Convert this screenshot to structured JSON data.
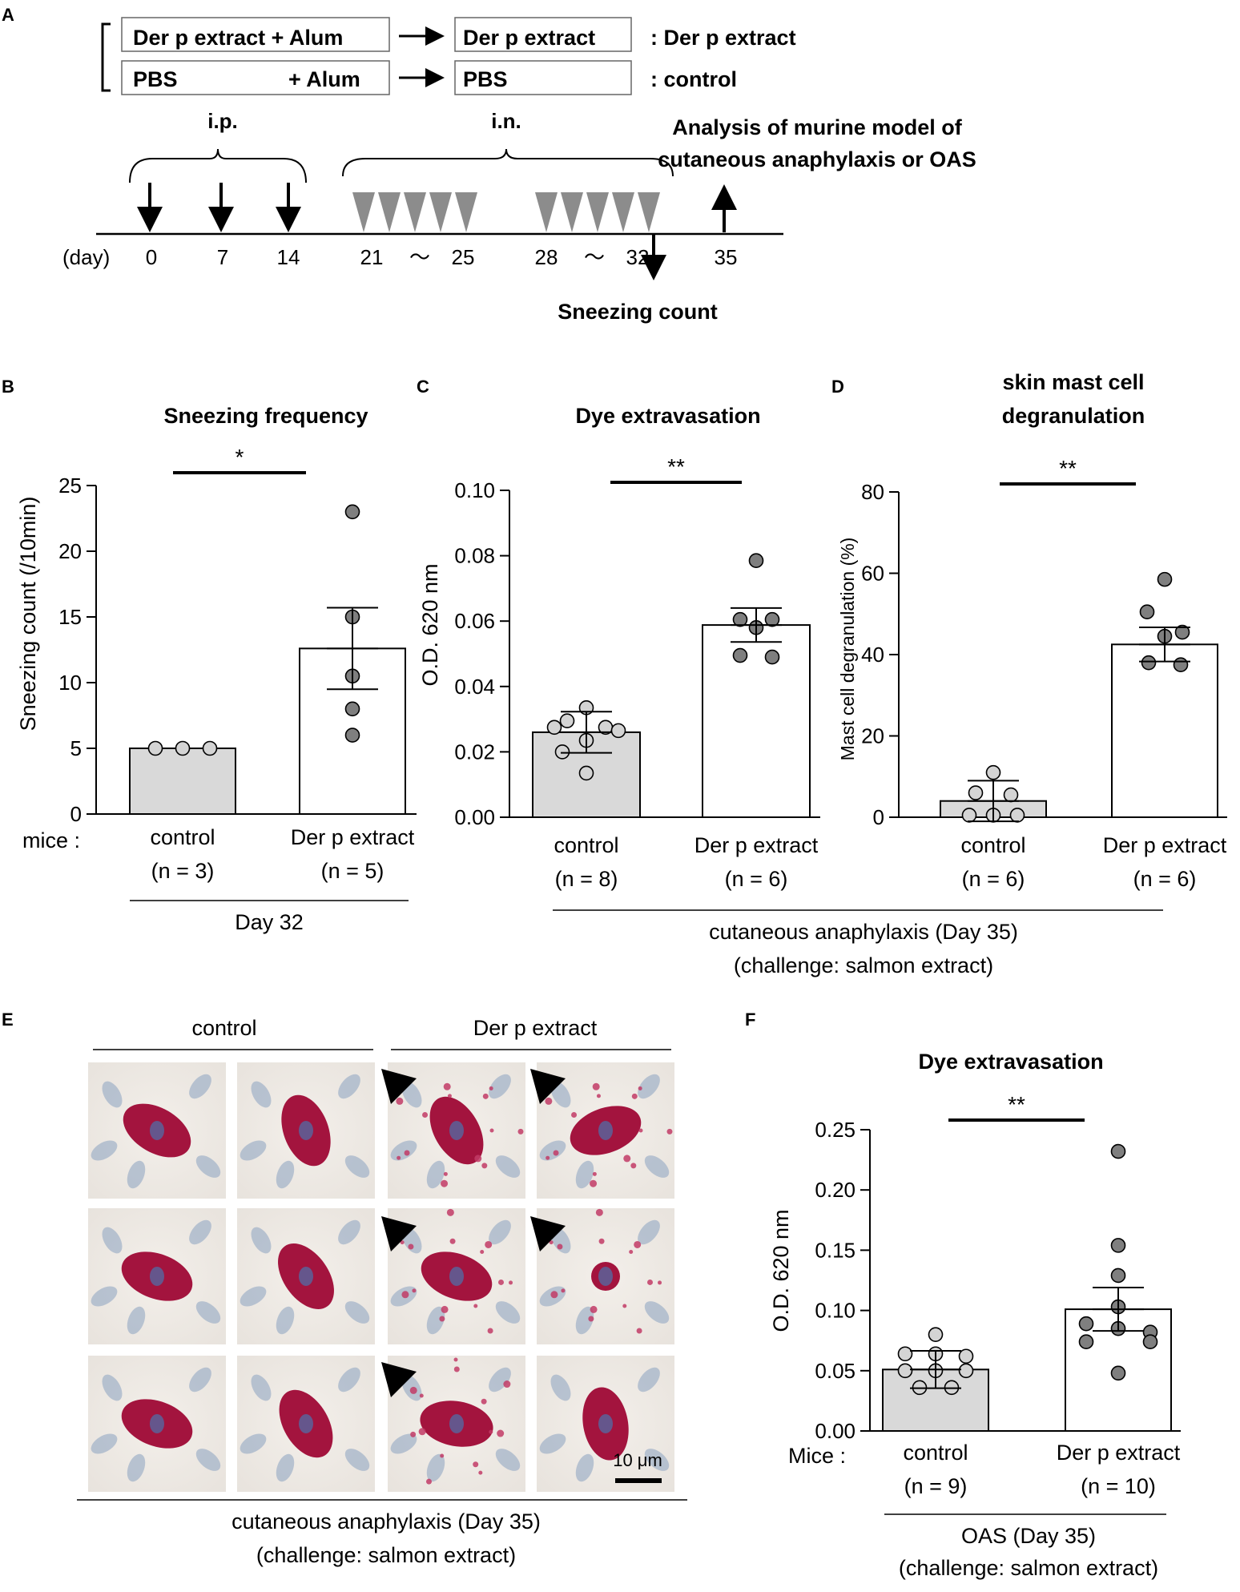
{
  "panels": {
    "A": {
      "letter": "A",
      "groups": [
        {
          "sensitization": "Der p extract + Alum",
          "challenge": "Der p extract",
          "label": ": Der p extract"
        },
        {
          "sensitization_left": "PBS",
          "sensitization_right": "+ Alum",
          "challenge": "PBS",
          "label": ": control"
        }
      ],
      "ip_label": "i.p.",
      "in_label": "i.n.",
      "analysis_label_1": "Analysis of murine model of",
      "analysis_label_2": "cutaneous anaphylaxis or OAS",
      "day_label": "(day)",
      "days": [
        "0",
        "7",
        "14",
        "21",
        "25",
        "28",
        "32",
        "35"
      ],
      "tilde": "〜",
      "sneezing_label": "Sneezing count"
    },
    "B": {
      "letter": "B",
      "mice_label": "mice :",
      "footer": "Day 32"
    },
    "C": {
      "letter": "C",
      "footer_1": "cutaneous anaphylaxis (Day 35)",
      "footer_2": "(challenge: salmon extract)"
    },
    "D": {
      "letter": "D"
    },
    "E": {
      "letter": "E",
      "col_control": "control",
      "col_derp": "Der p extract",
      "scale_bar": "10 μm",
      "footer_1": "cutaneous anaphylaxis (Day 35)",
      "footer_2": "(challenge: salmon extract)"
    },
    "F": {
      "letter": "F",
      "mice_label": "Mice :",
      "footer_1": "OAS (Day 35)",
      "footer_2": "(challenge: salmon extract)"
    }
  },
  "chart_data": [
    {
      "panel": "B",
      "type": "bar",
      "title": "Sneezing frequency",
      "ylabel": "Sneezing count (/10min)",
      "ylim": [
        0,
        25
      ],
      "yticks": [
        0,
        5,
        10,
        15,
        20,
        25
      ],
      "ytick_labels": [
        "0",
        "5",
        "10",
        "15",
        "20",
        "25"
      ],
      "categories": [
        "control",
        "Der p extract"
      ],
      "n_labels": [
        "(n = 3)",
        "(n = 5)"
      ],
      "means": [
        5,
        12.6
      ],
      "sem": [
        0,
        3.1
      ],
      "points": [
        [
          5,
          5,
          5
        ],
        [
          23,
          15,
          10.5,
          8,
          6
        ]
      ],
      "significance": "*"
    },
    {
      "panel": "C",
      "type": "bar",
      "title": "Dye extravasation",
      "ylabel": "O.D. 620 nm",
      "ylim": [
        0,
        0.1
      ],
      "yticks": [
        0,
        0.02,
        0.04,
        0.06,
        0.08,
        0.1
      ],
      "ytick_labels": [
        "0.00",
        "0.02",
        "0.04",
        "0.06",
        "0.08",
        "0.10"
      ],
      "categories": [
        "control",
        "Der p extract"
      ],
      "n_labels": [
        "(n = 8)",
        "(n = 6)"
      ],
      "means": [
        0.026,
        0.0588
      ],
      "sem": [
        0.0063,
        0.0052
      ],
      "points": [
        [
          0.0335,
          0.0295,
          0.0275,
          0.0275,
          0.0265,
          0.0235,
          0.02,
          0.0135
        ],
        [
          0.0785,
          0.0605,
          0.0605,
          0.058,
          0.0495,
          0.049
        ]
      ],
      "significance": "**"
    },
    {
      "panel": "D",
      "type": "bar",
      "title_line1": "skin mast cell",
      "title_line2": "degranulation",
      "ylabel": "Mast cell degranulation (%)",
      "ylim": [
        0,
        80
      ],
      "yticks": [
        0,
        20,
        40,
        60,
        80
      ],
      "ytick_labels": [
        "0",
        "20",
        "40",
        "60",
        "80"
      ],
      "categories": [
        "control",
        "Der p extract"
      ],
      "n_labels": [
        "(n = 6)",
        "(n = 6)"
      ],
      "means": [
        4,
        42.5
      ],
      "sem": [
        5,
        4.2
      ],
      "points": [
        [
          11,
          6,
          5.5,
          0.5,
          0.5,
          0.5
        ],
        [
          58.5,
          50.5,
          45.5,
          44.5,
          38,
          37.5
        ]
      ],
      "significance": "**"
    },
    {
      "panel": "F",
      "type": "bar",
      "title": "Dye extravasation",
      "ylabel": "O.D. 620 nm",
      "ylim": [
        0,
        0.25
      ],
      "yticks": [
        0,
        0.05,
        0.1,
        0.15,
        0.2,
        0.25
      ],
      "ytick_labels": [
        "0.00",
        "0.05",
        "0.10",
        "0.15",
        "0.20",
        "0.25"
      ],
      "categories": [
        "control",
        "Der p extract"
      ],
      "n_labels": [
        "(n = 9)",
        "(n = 10)"
      ],
      "means": [
        0.051,
        0.101
      ],
      "sem": [
        0.0155,
        0.018
      ],
      "points": [
        [
          0.08,
          0.064,
          0.064,
          0.062,
          0.05,
          0.05,
          0.05,
          0.036,
          0.036
        ],
        [
          0.232,
          0.154,
          0.129,
          0.103,
          0.089,
          0.085,
          0.082,
          0.074,
          0.074,
          0.048
        ]
      ],
      "significance": "**"
    }
  ]
}
